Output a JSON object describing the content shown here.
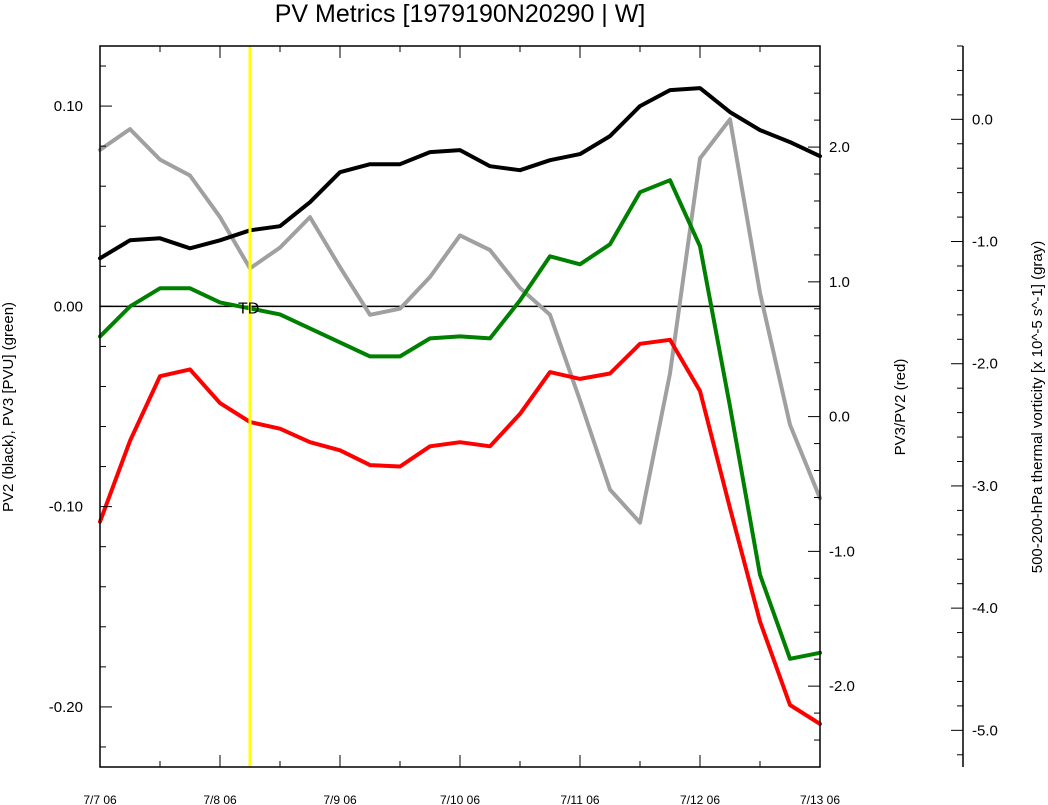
{
  "chart_data": {
    "type": "line",
    "title": "PV Metrics [1979190N20290 | W]",
    "left_axis": {
      "label": "PV2 (black), PV3 [PVU] (green)",
      "ylim": [
        -0.23,
        0.13
      ],
      "ticks": [
        -0.2,
        -0.1,
        0.0,
        0.1
      ],
      "tick_labels": [
        "-0.20",
        "-0.10",
        "0.00",
        "0.10"
      ],
      "minor_step": 0.02
    },
    "right_axis": {
      "label": "PV3/PV2 (red)",
      "ylim": [
        -2.6,
        2.75
      ],
      "ticks": [
        -2.0,
        -1.0,
        0.0,
        1.0,
        2.0
      ],
      "tick_labels": [
        "-2.0",
        "-1.0",
        "0.0",
        "1.0",
        "2.0"
      ],
      "minor_step": 0.2
    },
    "outer_axis": {
      "label": "500-200-hPa thermal vorticity [x 10^-5 s^-1] (gray)",
      "ylim": [
        -5.3,
        0.6
      ],
      "ticks": [
        -5.0,
        -4.0,
        -3.0,
        -2.0,
        -1.0,
        0.0
      ],
      "tick_labels": [
        "-5.0",
        "-4.0",
        "-3.0",
        "-2.0",
        "-1.0",
        "0.0"
      ],
      "minor_step": 0.2
    },
    "x": {
      "range_hours": [
        0,
        144
      ],
      "ticks": [
        0,
        24,
        48,
        72,
        96,
        120,
        144
      ],
      "tick_labels": [
        "7/7 06",
        "7/8 06",
        "7/9 06",
        "7/10 06",
        "7/11 06",
        "7/12 06",
        "7/13 06"
      ],
      "minor_step": 12
    },
    "zero_line": 0.0,
    "genesis_marker": {
      "x": 30,
      "label": "TD",
      "color": "#ffff00"
    },
    "series": [
      {
        "axis": "outer",
        "color": "#a0a0a0",
        "values": [
          [
            0,
            -0.25
          ],
          [
            6,
            -0.08
          ],
          [
            12,
            -0.33
          ],
          [
            18,
            -0.46
          ],
          [
            24,
            -0.8
          ],
          [
            30,
            -1.22
          ],
          [
            36,
            -1.05
          ],
          [
            42,
            -0.8
          ],
          [
            48,
            -1.21
          ],
          [
            54,
            -1.6
          ],
          [
            60,
            -1.55
          ],
          [
            66,
            -1.29
          ],
          [
            72,
            -0.95
          ],
          [
            78,
            -1.07
          ],
          [
            84,
            -1.38
          ],
          [
            90,
            -1.6
          ],
          [
            96,
            -2.3
          ],
          [
            102,
            -3.03
          ],
          [
            108,
            -3.3
          ],
          [
            114,
            -2.08
          ],
          [
            120,
            -0.32
          ],
          [
            126,
            0.0
          ],
          [
            132,
            -1.42
          ],
          [
            138,
            -2.5
          ],
          [
            144,
            -3.1
          ]
        ]
      },
      {
        "axis": "left",
        "color": "#000000",
        "values": [
          [
            0,
            0.024
          ],
          [
            6,
            0.033
          ],
          [
            12,
            0.034
          ],
          [
            18,
            0.029
          ],
          [
            24,
            0.033
          ],
          [
            30,
            0.038
          ],
          [
            36,
            0.04
          ],
          [
            42,
            0.052
          ],
          [
            48,
            0.067
          ],
          [
            54,
            0.071
          ],
          [
            60,
            0.071
          ],
          [
            66,
            0.077
          ],
          [
            72,
            0.078
          ],
          [
            78,
            0.07
          ],
          [
            84,
            0.068
          ],
          [
            90,
            0.073
          ],
          [
            96,
            0.076
          ],
          [
            102,
            0.085
          ],
          [
            108,
            0.1
          ],
          [
            114,
            0.108
          ],
          [
            120,
            0.109
          ],
          [
            126,
            0.097
          ],
          [
            132,
            0.088
          ],
          [
            138,
            0.082
          ],
          [
            144,
            0.075
          ]
        ]
      },
      {
        "axis": "left",
        "color": "#008000",
        "values": [
          [
            0,
            -0.015
          ],
          [
            6,
            0.0
          ],
          [
            12,
            0.009
          ],
          [
            18,
            0.009
          ],
          [
            24,
            0.002
          ],
          [
            30,
            -0.001
          ],
          [
            36,
            -0.004
          ],
          [
            42,
            -0.011
          ],
          [
            48,
            -0.018
          ],
          [
            54,
            -0.025
          ],
          [
            60,
            -0.025
          ],
          [
            66,
            -0.016
          ],
          [
            72,
            -0.015
          ],
          [
            78,
            -0.016
          ],
          [
            84,
            0.003
          ],
          [
            90,
            0.025
          ],
          [
            96,
            0.021
          ],
          [
            102,
            0.031
          ],
          [
            108,
            0.057
          ],
          [
            114,
            0.063
          ],
          [
            120,
            0.03
          ],
          [
            126,
            -0.05
          ],
          [
            132,
            -0.134
          ],
          [
            138,
            -0.176
          ],
          [
            144,
            -0.173
          ]
        ]
      },
      {
        "axis": "right",
        "color": "#ff0000",
        "values": [
          [
            0,
            -0.78
          ],
          [
            6,
            -0.18
          ],
          [
            12,
            0.3
          ],
          [
            18,
            0.35
          ],
          [
            24,
            0.1
          ],
          [
            30,
            -0.04
          ],
          [
            36,
            -0.09
          ],
          [
            42,
            -0.19
          ],
          [
            48,
            -0.25
          ],
          [
            54,
            -0.36
          ],
          [
            60,
            -0.37
          ],
          [
            66,
            -0.22
          ],
          [
            72,
            -0.19
          ],
          [
            78,
            -0.22
          ],
          [
            84,
            0.02
          ],
          [
            90,
            0.33
          ],
          [
            96,
            0.28
          ],
          [
            102,
            0.32
          ],
          [
            108,
            0.54
          ],
          [
            114,
            0.57
          ],
          [
            120,
            0.19
          ],
          [
            126,
            -0.68
          ],
          [
            132,
            -1.52
          ],
          [
            138,
            -2.14
          ],
          [
            144,
            -2.28
          ]
        ]
      }
    ]
  }
}
